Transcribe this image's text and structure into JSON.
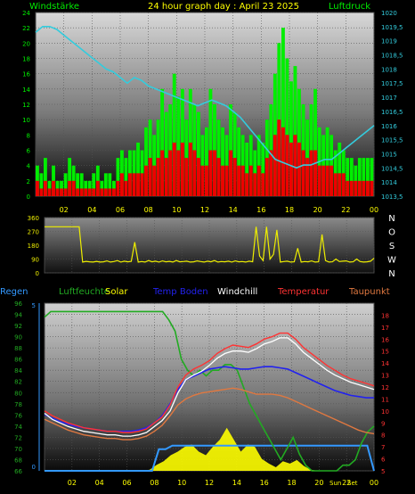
{
  "chart_data": [
    {
      "type": "bar",
      "title": "24 hour graph day : April 23 2025",
      "left_label": "Windstärke",
      "right_label": "Luftdruck",
      "x_ticks": [
        "02",
        "04",
        "06",
        "08",
        "10",
        "12",
        "14",
        "16",
        "18",
        "20",
        "22",
        "00"
      ],
      "x_range": [
        0,
        24
      ],
      "ylim_left": [
        0,
        24
      ],
      "y_ticks_left": [
        "0",
        "2",
        "4",
        "6",
        "8",
        "10",
        "12",
        "14",
        "16",
        "18",
        "20",
        "22",
        "24"
      ],
      "ylim_right": [
        1013.5,
        1020
      ],
      "y_ticks_right": [
        "1013,5",
        "1014",
        "1014,5",
        "1015",
        "1015,5",
        "1016",
        "1016,5",
        "1017",
        "1017,5",
        "1018",
        "1018,5",
        "1019",
        "1019,5",
        "1020"
      ],
      "series": [
        {
          "name": "Windstärke",
          "kind": "gust",
          "color": "#00ee00",
          "values": [
            4,
            3,
            5,
            2,
            4,
            2,
            2,
            3,
            5,
            4,
            3,
            3,
            2,
            2,
            3,
            4,
            2,
            3,
            3,
            2,
            5,
            6,
            5,
            6,
            6,
            7,
            6,
            9,
            10,
            8,
            10,
            14,
            11,
            12,
            16,
            13,
            14,
            10,
            14,
            12,
            11,
            8,
            9,
            14,
            12,
            10,
            9,
            8,
            12,
            11,
            9,
            8,
            7,
            8,
            6,
            8,
            7,
            10,
            12,
            16,
            20,
            22,
            18,
            15,
            17,
            14,
            12,
            10,
            12,
            14,
            9,
            8,
            9,
            8,
            6,
            7,
            6,
            5,
            5,
            4,
            5,
            5,
            5,
            5
          ]
        },
        {
          "name": "Wind mean",
          "kind": "mean",
          "color": "#ee0000",
          "values": [
            2,
            1,
            2,
            1,
            2,
            1,
            1,
            1,
            2,
            2,
            1,
            1,
            1,
            1,
            1,
            2,
            1,
            1,
            1,
            1,
            2,
            3,
            2,
            3,
            3,
            3,
            3,
            4,
            5,
            4,
            5,
            6,
            5,
            6,
            7,
            6,
            7,
            5,
            7,
            6,
            5,
            4,
            4,
            6,
            6,
            5,
            4,
            4,
            6,
            5,
            4,
            4,
            3,
            4,
            3,
            4,
            3,
            5,
            6,
            8,
            10,
            9,
            8,
            7,
            8,
            7,
            6,
            5,
            6,
            6,
            4,
            4,
            4,
            4,
            3,
            3,
            3,
            2,
            2,
            2,
            2,
            2,
            2,
            2
          ]
        },
        {
          "name": "Luftdruck",
          "axis": "right",
          "color": "#33ccdd",
          "values": [
            1019.3,
            1019.5,
            1019.5,
            1019.4,
            1019.2,
            1019.0,
            1018.8,
            1018.6,
            1018.4,
            1018.2,
            1018.0,
            1017.9,
            1017.7,
            1017.5,
            1017.7,
            1017.6,
            1017.4,
            1017.3,
            1017.2,
            1017.1,
            1017.0,
            1016.9,
            1016.8,
            1016.7,
            1016.8,
            1016.9,
            1016.8,
            1016.7,
            1016.5,
            1016.3,
            1016.0,
            1015.7,
            1015.4,
            1015.1,
            1014.8,
            1014.7,
            1014.6,
            1014.5,
            1014.6,
            1014.6,
            1014.7,
            1014.8,
            1014.8,
            1015.0,
            1015.2,
            1015.4,
            1015.6,
            1015.8,
            1016.0
          ]
        }
      ]
    },
    {
      "type": "line",
      "x_range": [
        0,
        24
      ],
      "ylim": [
        0,
        360
      ],
      "y_ticks": [
        "0",
        "90",
        "180",
        "270",
        "360"
      ],
      "compass": [
        "N",
        "W",
        "S",
        "O",
        "N"
      ],
      "series": [
        {
          "name": "Windrichtung",
          "color": "#eeee00",
          "values": [
            300,
            300,
            300,
            300,
            300,
            300,
            300,
            300,
            300,
            300,
            300,
            70,
            75,
            72,
            70,
            75,
            70,
            72,
            78,
            70,
            74,
            80,
            70,
            76,
            72,
            75,
            200,
            70,
            74,
            70,
            80,
            72,
            76,
            70,
            78,
            72,
            75,
            70,
            80,
            72,
            74,
            76,
            70,
            72,
            78,
            74,
            70,
            76,
            72,
            80,
            70,
            74,
            72,
            76,
            70,
            78,
            72,
            74,
            70,
            76,
            72,
            300,
            110,
            80,
            300,
            90,
            120,
            280,
            70,
            74,
            76,
            70,
            72,
            160,
            70,
            74,
            72,
            78,
            70,
            72,
            250,
            80,
            70,
            72,
            90,
            74,
            76,
            78,
            70,
            72,
            90,
            74,
            70,
            72,
            76,
            95
          ]
        }
      ]
    },
    {
      "type": "line",
      "legend": [
        "Regen",
        "Luftfeuchte",
        "Solar",
        "Temp Boden",
        "Windchill",
        "Temperatur",
        "Taupunkt"
      ],
      "x_ticks": [
        "02",
        "04",
        "06",
        "08",
        "10",
        "12",
        "14",
        "16",
        "18",
        "20",
        "22",
        "00"
      ],
      "x_range": [
        0,
        24
      ],
      "ylim_left": [
        66,
        96
      ],
      "y_ticks_left": [
        "66",
        "68",
        "70",
        "72",
        "74",
        "76",
        "78",
        "80",
        "82",
        "84",
        "86",
        "88",
        "90",
        "92",
        "94",
        "96"
      ],
      "ylim_right": [
        5,
        19
      ],
      "y_ticks_right": [
        "5",
        "6",
        "7",
        "8",
        "9",
        "10",
        "11",
        "12",
        "13",
        "14",
        "15",
        "16",
        "17",
        "18"
      ],
      "sun_labels": [
        "Sun",
        "Set"
      ],
      "series": [
        {
          "name": "Luftfeuchte",
          "axis": "left",
          "color": "#22aa22",
          "values": [
            93.5,
            94.5,
            94.5,
            94.5,
            94.5,
            94.5,
            94.5,
            94.5,
            94.5,
            94.5,
            94.5,
            94.5,
            94.5,
            94.5,
            94.5,
            94.5,
            94.5,
            94.5,
            94.5,
            94.5,
            93,
            91,
            86,
            84,
            83,
            84,
            83,
            84,
            84,
            85,
            85,
            84,
            81,
            78,
            76,
            74,
            72,
            70,
            68,
            70,
            72,
            69,
            67,
            66,
            66,
            66,
            66,
            66,
            67,
            67,
            68,
            71,
            73,
            74
          ]
        },
        {
          "name": "Temperatur",
          "axis": "right",
          "color": "#ff3333",
          "values": [
            10.0,
            9.6,
            9.3,
            9.0,
            8.8,
            8.6,
            8.5,
            8.4,
            8.3,
            8.3,
            8.2,
            8.2,
            8.3,
            8.5,
            9.0,
            9.5,
            10.5,
            12.0,
            13.0,
            13.5,
            13.8,
            14.2,
            14.8,
            15.2,
            15.5,
            15.4,
            15.3,
            15.6,
            16.0,
            16.2,
            16.5,
            16.5,
            16.0,
            15.3,
            14.8,
            14.3,
            13.8,
            13.4,
            13.0,
            12.7,
            12.5,
            12.3,
            12.1
          ]
        },
        {
          "name": "Windchill",
          "axis": "right",
          "color": "#ffffff",
          "values": [
            9.8,
            9.3,
            9.0,
            8.7,
            8.5,
            8.3,
            8.2,
            8.1,
            8.0,
            8.0,
            7.9,
            7.9,
            8.0,
            8.2,
            8.7,
            9.2,
            10.0,
            11.5,
            12.6,
            13.0,
            13.3,
            13.8,
            14.4,
            14.8,
            15.0,
            15.0,
            14.9,
            15.2,
            15.6,
            15.8,
            16.1,
            16.1,
            15.6,
            14.9,
            14.4,
            13.9,
            13.4,
            13.0,
            12.7,
            12.4,
            12.2,
            12.0,
            11.8
          ]
        },
        {
          "name": "Temp Boden",
          "axis": "right",
          "color": "#2222ee",
          "values": [
            9.7,
            9.4,
            9.1,
            8.9,
            8.7,
            8.6,
            8.5,
            8.4,
            8.3,
            8.3,
            8.3,
            8.3,
            8.4,
            8.6,
            9.0,
            9.6,
            10.6,
            11.8,
            12.6,
            12.9,
            13.2,
            13.5,
            13.6,
            13.7,
            13.6,
            13.5,
            13.5,
            13.6,
            13.7,
            13.7,
            13.6,
            13.5,
            13.2,
            12.9,
            12.6,
            12.3,
            12.0,
            11.7,
            11.5,
            11.3,
            11.2,
            11.1,
            11.1
          ]
        },
        {
          "name": "Taupunkt",
          "axis": "right",
          "color": "#e07840",
          "values": [
            9.3,
            9.0,
            8.7,
            8.4,
            8.2,
            8.0,
            7.9,
            7.8,
            7.7,
            7.7,
            7.6,
            7.6,
            7.7,
            7.9,
            8.3,
            8.8,
            9.6,
            10.5,
            11.0,
            11.3,
            11.5,
            11.6,
            11.7,
            11.8,
            11.9,
            11.8,
            11.6,
            11.4,
            11.4,
            11.4,
            11.3,
            11.1,
            10.8,
            10.5,
            10.2,
            9.9,
            9.6,
            9.3,
            9.0,
            8.7,
            8.4,
            8.2,
            8.1
          ]
        },
        {
          "name": "Solar",
          "axis": "right",
          "color": "#ffff00",
          "values": [
            5,
            5,
            5,
            5,
            5,
            5,
            5,
            5,
            5,
            5,
            5,
            5,
            5,
            5,
            5,
            5.1,
            5.5,
            5.8,
            6.3,
            6.6,
            7.0,
            7.2,
            6.6,
            6.3,
            7.0,
            7.6,
            8.6,
            7.6,
            6.6,
            7.2,
            7.0,
            6.0,
            5.6,
            5.3,
            5.8,
            5.6,
            5.9,
            5.4,
            5.1,
            5.0,
            5.0,
            5.0,
            5.0,
            5,
            5,
            5,
            5,
            5
          ]
        },
        {
          "name": "Regen",
          "axis": "right",
          "color": "#3399ff",
          "values": [
            5.0,
            5.0,
            5.0,
            5.0,
            5.0,
            5.0,
            5.0,
            5.0,
            5.0,
            5.0,
            5.0,
            5.0,
            5.0,
            5.0,
            5.0,
            5.0,
            5.0,
            6.8,
            6.8,
            7.1,
            7.1,
            7.1,
            7.1,
            7.1,
            7.1,
            7.1,
            7.1,
            7.1,
            7.1,
            7.1,
            7.1,
            7.1,
            7.1,
            7.1,
            7.1,
            7.1,
            7.1,
            7.1,
            7.1,
            7.1,
            7.1,
            7.1,
            7.1,
            7.1,
            7.1,
            7.1,
            7.1,
            7.1,
            7.1,
            5.0
          ]
        }
      ]
    }
  ]
}
